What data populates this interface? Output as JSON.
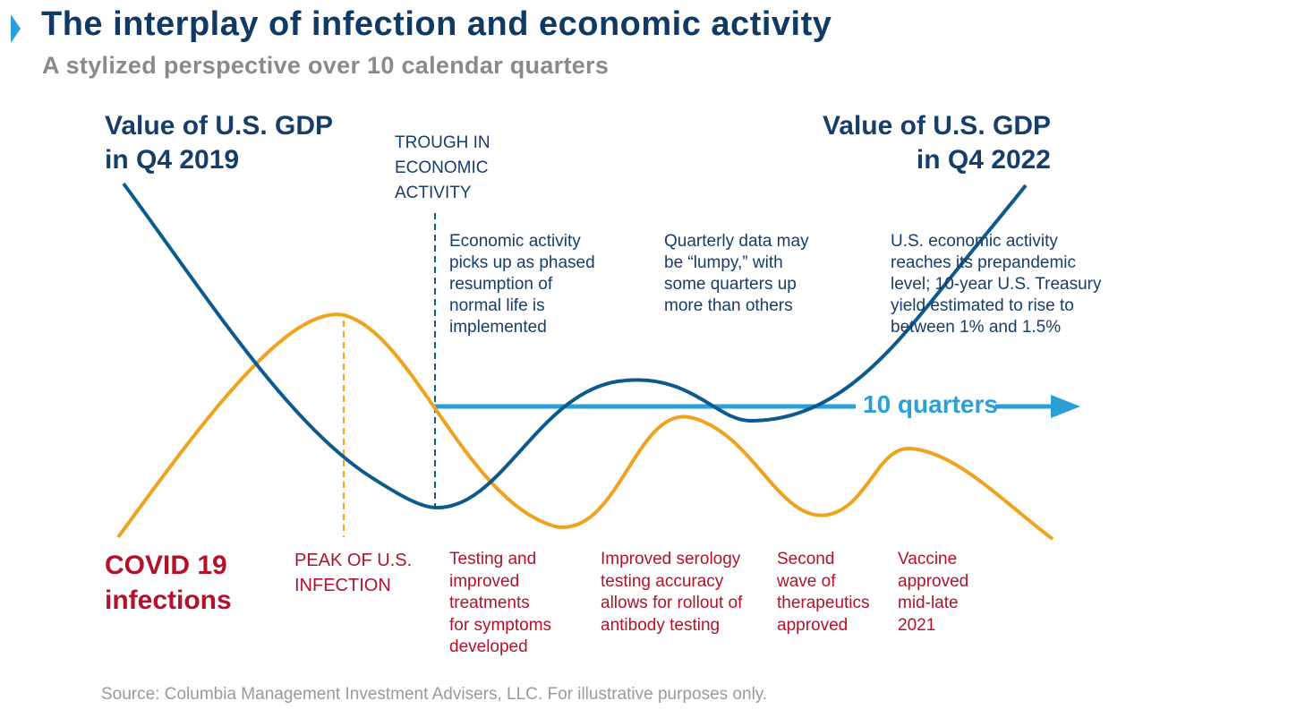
{
  "header": {
    "title": "The interplay of infection and economic activity",
    "subtitle": "A stylized perspective over 10 calendar quarters"
  },
  "labels": {
    "gdp_left": [
      "Value of U.S. GDP",
      "in Q4 2019"
    ],
    "gdp_right": [
      "Value of U.S. GDP",
      "in Q4 2022"
    ],
    "trough": [
      "TROUGH IN",
      "ECONOMIC",
      "ACTIVITY"
    ],
    "covid": [
      "COVID 19",
      "infections"
    ],
    "peak": [
      "PEAK OF U.S.",
      "INFECTION"
    ],
    "quarters_arrow": "10 quarters"
  },
  "economic_notes": [
    [
      "Economic activity",
      "picks up as phased",
      "resumption of",
      "normal life is",
      "implemented"
    ],
    [
      "Quarterly data may",
      "be “lumpy,” with",
      "some quarters up",
      "more than others"
    ],
    [
      "U.S. economic activity",
      "reaches its prepandemic",
      "level; 10-year U.S. Treasury",
      "yield estimated to rise to",
      "between 1% and 1.5%"
    ]
  ],
  "infection_notes": [
    [
      "Testing and",
      "improved",
      "treatments",
      "for symptoms",
      "developed"
    ],
    [
      "Improved serology",
      "testing accuracy",
      "allows for rollout of",
      "antibody testing"
    ],
    [
      "Second",
      "wave of",
      "therapeutics",
      "approved"
    ],
    [
      "Vaccine",
      "approved",
      "mid-late",
      "2021"
    ]
  ],
  "source": "Source: Columbia Management Investment Advisers, LLC. For illustrative purposes only.",
  "colors": {
    "gdp_line": "#0d5a8e",
    "infection_line": "#f0a21f",
    "arrow": "#2a9fd8",
    "title": "#0f3a66",
    "red_text": "#b2122a",
    "accent_triangle": "#2a9fd8"
  }
}
